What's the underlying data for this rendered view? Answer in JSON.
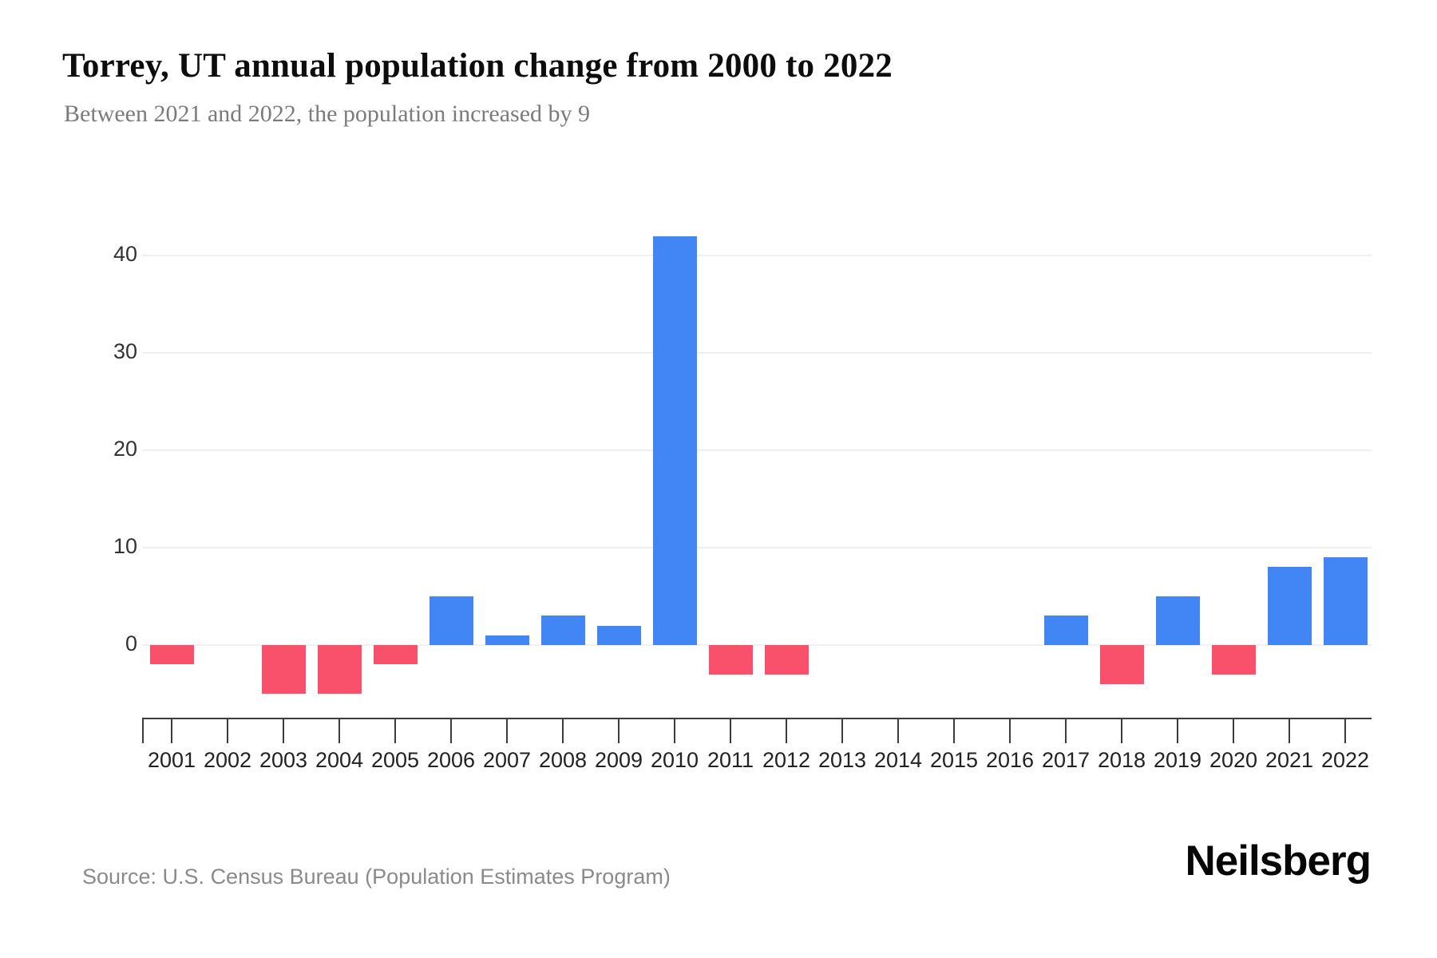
{
  "header": {
    "title": "Torrey, UT annual population change from 2000 to 2022",
    "subtitle": "Between 2021 and 2022, the population increased by 9"
  },
  "chart_data": {
    "type": "bar",
    "title": "Torrey, UT annual population change from 2000 to 2022",
    "subtitle": "Between 2021 and 2022, the population increased by 9",
    "categories": [
      "2001",
      "2002",
      "2003",
      "2004",
      "2005",
      "2006",
      "2007",
      "2008",
      "2009",
      "2010",
      "2011",
      "2012",
      "2013",
      "2014",
      "2015",
      "2016",
      "2017",
      "2018",
      "2019",
      "2020",
      "2021",
      "2022"
    ],
    "values": [
      -2,
      0,
      -5,
      -5,
      -2,
      5,
      1,
      3,
      2,
      42,
      -3,
      -3,
      0,
      0,
      0,
      0,
      3,
      -4,
      5,
      -3,
      8,
      9
    ],
    "y_ticks": [
      0,
      10,
      20,
      30,
      40
    ],
    "ylim": [
      -6,
      44
    ],
    "xlabel": "",
    "ylabel": "",
    "grid": "horizontal",
    "legend": "none",
    "colors": {
      "positive": "#4285F4",
      "negative": "#F9506B"
    }
  },
  "footer": {
    "source": "Source: U.S. Census Bureau (Population Estimates Program)",
    "brand": "Neilsberg"
  }
}
